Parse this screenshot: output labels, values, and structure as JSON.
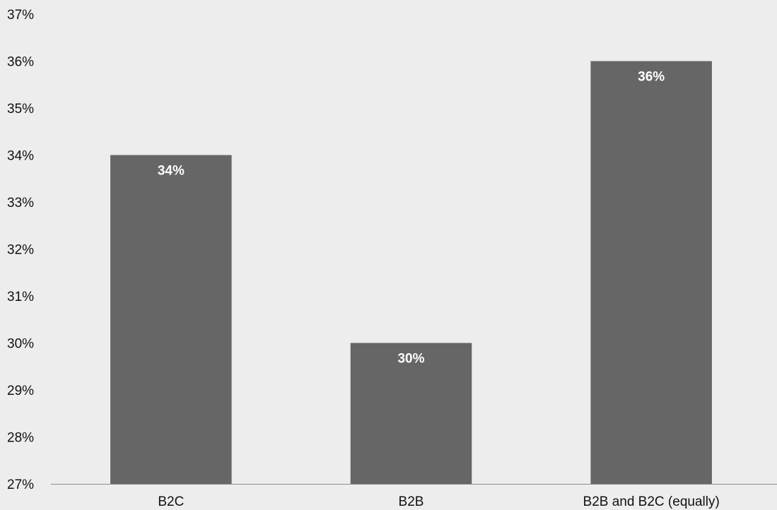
{
  "chart_data": {
    "type": "bar",
    "categories": [
      "B2C",
      "B2B",
      "B2B and B2C (equally)"
    ],
    "values": [
      34,
      30,
      36
    ],
    "data_labels": [
      "34%",
      "30%",
      "36%"
    ],
    "ylim": [
      27,
      37
    ],
    "yticks": [
      27,
      28,
      29,
      30,
      31,
      32,
      33,
      34,
      35,
      36,
      37
    ],
    "ytick_labels": [
      "27%",
      "28%",
      "29%",
      "30%",
      "31%",
      "32%",
      "33%",
      "34%",
      "35%",
      "36%",
      "37%"
    ],
    "grid": false,
    "legend": "none",
    "colors": {
      "bar": "#666666",
      "background": "#ededed",
      "axis": "#8c8c8c"
    }
  }
}
